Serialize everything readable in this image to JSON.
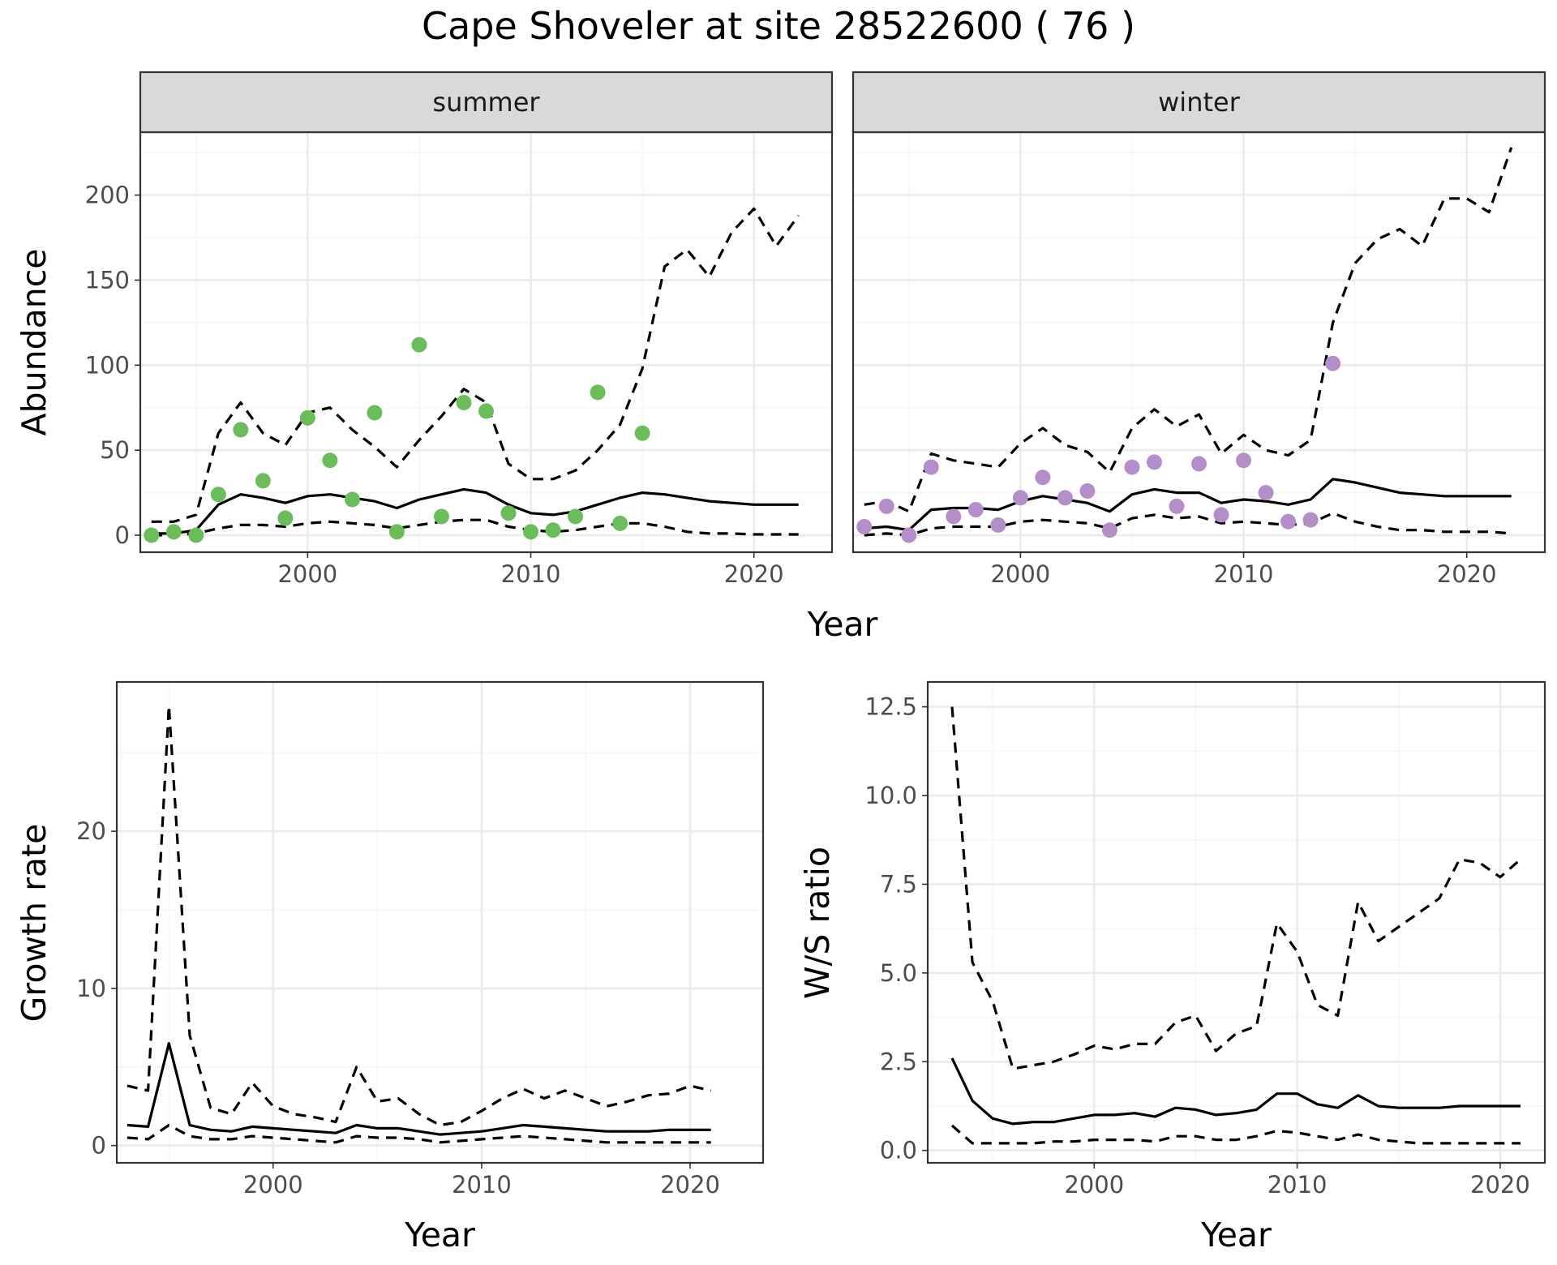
{
  "title": "Cape Shoveler at site 28522600 ( 76 )",
  "colors": {
    "summer_points": "#6bbd5b",
    "winter_points": "#b48ec8",
    "lines": "#000000",
    "grid_major": "#ebebeb",
    "grid_minor": "#f5f5f5",
    "strip_bg": "#d9d9d9",
    "panel_border": "#333333"
  },
  "chart_data": [
    {
      "type": "line",
      "facets": [
        "summer",
        "winter"
      ],
      "xlabel": "Year",
      "ylabel": "Abundance",
      "xlim": [
        1992.5,
        2023.5
      ],
      "ylim": [
        -10,
        237
      ],
      "xticks": [
        2000,
        2010,
        2020
      ],
      "yticks": [
        0,
        50,
        100,
        150,
        200
      ],
      "grid": true,
      "panels": [
        {
          "name": "summer",
          "points": {
            "x": [
              1993,
              1994,
              1995,
              1996,
              1997,
              1998,
              1999,
              2000,
              2001,
              2002,
              2003,
              2004,
              2005,
              2006,
              2007,
              2008,
              2009,
              2010,
              2011,
              2012,
              2013,
              2014,
              2015
            ],
            "y": [
              0,
              2,
              0,
              24,
              62,
              32,
              10,
              69,
              44,
              21,
              72,
              2,
              112,
              11,
              78,
              73,
              13,
              2,
              3,
              11,
              84,
              7,
              60
            ]
          },
          "lines": [
            {
              "style": "solid",
              "x": [
                1993,
                1994,
                1995,
                1996,
                1997,
                1998,
                1999,
                2000,
                2001,
                2002,
                2003,
                2004,
                2005,
                2006,
                2007,
                2008,
                2009,
                2010,
                2011,
                2012,
                2013,
                2014,
                2015,
                2016,
                2017,
                2018,
                2019,
                2020,
                2021,
                2022
              ],
              "y": [
                1,
                1,
                3,
                18,
                24,
                22,
                19,
                23,
                24,
                22,
                20,
                16,
                21,
                24,
                27,
                25,
                18,
                13,
                12,
                14,
                18,
                22,
                25,
                24,
                22,
                20,
                19,
                18,
                18,
                18
              ]
            },
            {
              "style": "dashed",
              "x": [
                1993,
                1994,
                1995,
                1996,
                1997,
                1998,
                1999,
                2000,
                2001,
                2002,
                2003,
                2004,
                2005,
                2006,
                2007,
                2008,
                2009,
                2010,
                2011,
                2012,
                2013,
                2014,
                2015,
                2016,
                2017,
                2018,
                2019,
                2020,
                2021,
                2022
              ],
              "y": [
                8,
                8,
                12,
                60,
                78,
                60,
                53,
                72,
                75,
                62,
                52,
                40,
                56,
                70,
                86,
                78,
                42,
                33,
                33,
                38,
                50,
                65,
                98,
                158,
                168,
                152,
                178,
                192,
                170,
                188
              ]
            },
            {
              "style": "dashed",
              "x": [
                1993,
                1994,
                1995,
                1996,
                1997,
                1998,
                1999,
                2000,
                2001,
                2002,
                2003,
                2004,
                2005,
                2006,
                2007,
                2008,
                2009,
                2010,
                2011,
                2012,
                2013,
                2014,
                2015,
                2016,
                2017,
                2018,
                2019,
                2020,
                2021,
                2022
              ],
              "y": [
                0,
                0,
                1,
                4,
                6,
                6,
                5,
                7,
                8,
                7,
                6,
                4,
                6,
                8,
                9,
                9,
                5,
                3,
                2,
                3,
                5,
                7,
                7,
                5,
                2,
                1,
                1,
                0.5,
                0.5,
                0.5
              ]
            }
          ]
        },
        {
          "name": "winter",
          "points": {
            "x": [
              1993,
              1994,
              1995,
              1996,
              1997,
              1998,
              1999,
              2000,
              2001,
              2002,
              2003,
              2004,
              2005,
              2006,
              2007,
              2008,
              2009,
              2010,
              2011,
              2012,
              2013,
              2014
            ],
            "y": [
              5,
              17,
              0,
              40,
              11,
              15,
              6,
              22,
              34,
              22,
              26,
              3,
              40,
              43,
              17,
              42,
              12,
              44,
              25,
              8,
              9,
              101
            ]
          },
          "lines": [
            {
              "style": "solid",
              "x": [
                1993,
                1994,
                1995,
                1996,
                1997,
                1998,
                1999,
                2000,
                2001,
                2002,
                2003,
                2004,
                2005,
                2006,
                2007,
                2008,
                2009,
                2010,
                2011,
                2012,
                2013,
                2014,
                2015,
                2016,
                2017,
                2018,
                2019,
                2020,
                2021,
                2022
              ],
              "y": [
                4,
                5,
                3,
                15,
                16,
                16,
                15,
                20,
                23,
                21,
                19,
                14,
                24,
                27,
                25,
                25,
                19,
                21,
                20,
                18,
                21,
                33,
                31,
                28,
                25,
                24,
                23,
                23,
                23,
                23
              ]
            },
            {
              "style": "dashed",
              "x": [
                1993,
                1994,
                1995,
                1996,
                1997,
                1998,
                1999,
                2000,
                2001,
                2002,
                2003,
                2004,
                2005,
                2006,
                2007,
                2008,
                2009,
                2010,
                2011,
                2012,
                2013,
                2014,
                2015,
                2016,
                2017,
                2018,
                2019,
                2020,
                2021,
                2022
              ],
              "y": [
                18,
                20,
                14,
                48,
                44,
                42,
                40,
                54,
                63,
                53,
                49,
                37,
                63,
                74,
                64,
                71,
                48,
                59,
                50,
                47,
                56,
                125,
                160,
                174,
                180,
                170,
                198,
                198,
                190,
                228
              ]
            },
            {
              "style": "dashed",
              "x": [
                1993,
                1994,
                1995,
                1996,
                1997,
                1998,
                1999,
                2000,
                2001,
                2002,
                2003,
                2004,
                2005,
                2006,
                2007,
                2008,
                2009,
                2010,
                2011,
                2012,
                2013,
                2014,
                2015,
                2016,
                2017,
                2018,
                2019,
                2020,
                2021,
                2022
              ],
              "y": [
                0,
                1,
                0,
                4,
                5,
                5,
                5,
                8,
                9,
                8,
                7,
                4,
                10,
                12,
                10,
                11,
                7,
                8,
                7,
                6,
                7,
                13,
                8,
                5,
                3,
                3,
                2,
                2,
                2,
                1
              ]
            }
          ]
        }
      ]
    },
    {
      "type": "line",
      "xlabel": "Year",
      "ylabel": "Growth rate",
      "xlim": [
        1992.5,
        2023.5
      ],
      "ylim": [
        -1.1,
        29.5
      ],
      "xticks": [
        2000,
        2010,
        2020
      ],
      "yticks": [
        0,
        10,
        20
      ],
      "grid": true,
      "lines": [
        {
          "style": "solid",
          "x": [
            1993,
            1994,
            1995,
            1996,
            1997,
            1998,
            1999,
            2000,
            2001,
            2002,
            2003,
            2004,
            2005,
            2006,
            2007,
            2008,
            2009,
            2010,
            2011,
            2012,
            2013,
            2014,
            2015,
            2016,
            2017,
            2018,
            2019,
            2020,
            2021
          ],
          "y": [
            1.3,
            1.2,
            6.5,
            1.3,
            1.0,
            0.9,
            1.2,
            1.1,
            1.0,
            0.9,
            0.8,
            1.3,
            1.1,
            1.1,
            0.9,
            0.7,
            0.8,
            0.9,
            1.1,
            1.3,
            1.2,
            1.1,
            1.0,
            0.9,
            0.9,
            0.9,
            1.0,
            1.0,
            1.0
          ]
        },
        {
          "style": "dashed",
          "x": [
            1993,
            1994,
            1995,
            1996,
            1997,
            1998,
            1999,
            2000,
            2001,
            2002,
            2003,
            2004,
            2005,
            2006,
            2007,
            2008,
            2009,
            2010,
            2011,
            2012,
            2013,
            2014,
            2015,
            2016,
            2017,
            2018,
            2019,
            2020,
            2021
          ],
          "y": [
            3.8,
            3.5,
            28,
            7.0,
            2.4,
            2.0,
            4.0,
            2.5,
            2.0,
            1.8,
            1.5,
            5.0,
            2.8,
            3.0,
            2.0,
            1.3,
            1.5,
            2.2,
            3.0,
            3.6,
            3.0,
            3.5,
            3.0,
            2.5,
            2.8,
            3.2,
            3.3,
            3.8,
            3.5
          ]
        },
        {
          "style": "dashed",
          "x": [
            1993,
            1994,
            1995,
            1996,
            1997,
            1998,
            1999,
            2000,
            2001,
            2002,
            2003,
            2004,
            2005,
            2006,
            2007,
            2008,
            2009,
            2010,
            2011,
            2012,
            2013,
            2014,
            2015,
            2016,
            2017,
            2018,
            2019,
            2020,
            2021
          ],
          "y": [
            0.5,
            0.4,
            1.3,
            0.6,
            0.4,
            0.4,
            0.6,
            0.5,
            0.4,
            0.3,
            0.2,
            0.6,
            0.5,
            0.5,
            0.4,
            0.2,
            0.3,
            0.4,
            0.5,
            0.6,
            0.5,
            0.4,
            0.3,
            0.2,
            0.2,
            0.2,
            0.2,
            0.2,
            0.2
          ]
        }
      ]
    },
    {
      "type": "line",
      "xlabel": "Year",
      "ylabel": "W/S ratio",
      "xlim": [
        1991.8,
        2022.2
      ],
      "ylim": [
        -0.35,
        13.2
      ],
      "xticks": [
        2000,
        2010,
        2020
      ],
      "yticks": [
        0.0,
        2.5,
        5.0,
        7.5,
        10.0,
        12.5
      ],
      "ytick_labels": [
        "0.0",
        "2.5",
        "5.0",
        "7.5",
        "10.0",
        "12.5"
      ],
      "grid": true,
      "lines": [
        {
          "style": "solid",
          "x": [
            1993,
            1994,
            1995,
            1996,
            1997,
            1998,
            1999,
            2000,
            2001,
            2002,
            2003,
            2004,
            2005,
            2006,
            2007,
            2008,
            2009,
            2010,
            2011,
            2012,
            2013,
            2014,
            2015,
            2016,
            2017,
            2018,
            2019,
            2020,
            2021
          ],
          "y": [
            2.6,
            1.4,
            0.9,
            0.75,
            0.8,
            0.8,
            0.9,
            1.0,
            1.0,
            1.05,
            0.95,
            1.2,
            1.15,
            1.0,
            1.05,
            1.15,
            1.6,
            1.6,
            1.3,
            1.2,
            1.55,
            1.25,
            1.2,
            1.2,
            1.2,
            1.25,
            1.25,
            1.25,
            1.25
          ]
        },
        {
          "style": "dashed",
          "x": [
            1993,
            1994,
            1995,
            1996,
            1997,
            1998,
            1999,
            2000,
            2001,
            2002,
            2003,
            2004,
            2005,
            2006,
            2007,
            2008,
            2009,
            2010,
            2011,
            2012,
            2013,
            2014,
            2015,
            2016,
            2017,
            2018,
            2019,
            2020,
            2021
          ],
          "y": [
            12.5,
            5.3,
            4.2,
            2.3,
            2.4,
            2.5,
            2.7,
            2.95,
            2.85,
            3.0,
            3.0,
            3.6,
            3.8,
            2.8,
            3.3,
            3.5,
            6.4,
            5.6,
            4.1,
            3.8,
            7.0,
            5.9,
            6.3,
            6.7,
            7.1,
            8.2,
            8.1,
            7.7,
            8.2
          ]
        },
        {
          "style": "dashed",
          "x": [
            1993,
            1994,
            1995,
            1996,
            1997,
            1998,
            1999,
            2000,
            2001,
            2002,
            2003,
            2004,
            2005,
            2006,
            2007,
            2008,
            2009,
            2010,
            2011,
            2012,
            2013,
            2014,
            2015,
            2016,
            2017,
            2018,
            2019,
            2020,
            2021
          ],
          "y": [
            0.7,
            0.2,
            0.2,
            0.2,
            0.2,
            0.25,
            0.25,
            0.3,
            0.3,
            0.3,
            0.25,
            0.4,
            0.4,
            0.3,
            0.3,
            0.4,
            0.55,
            0.5,
            0.4,
            0.3,
            0.45,
            0.3,
            0.25,
            0.2,
            0.2,
            0.2,
            0.2,
            0.2,
            0.2
          ]
        }
      ]
    }
  ]
}
